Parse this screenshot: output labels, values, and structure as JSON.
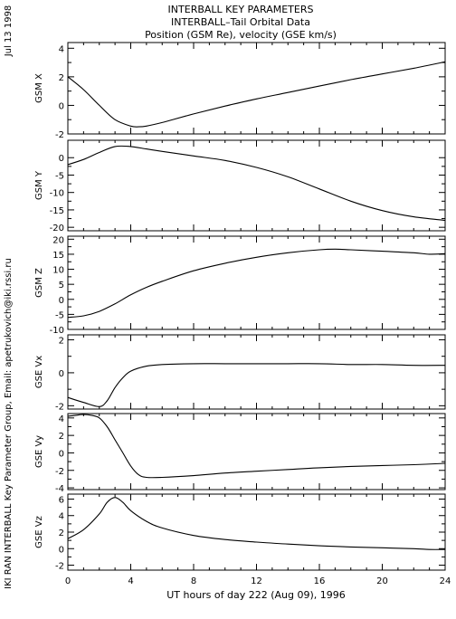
{
  "header": {
    "title_line1": "INTERBALL KEY PARAMETERS",
    "title_line2": "INTERBALL–Tail Orbital Data",
    "title_line3": "Position (GSM Re), velocity (GSE km/s)"
  },
  "side_labels": {
    "date": "Jul 13 1998",
    "credit": "IKI RAN INTERBALL Key Parameter Group, Email: apetrukovich@iki.rssi.ru"
  },
  "colors": {
    "line": "#000000",
    "background": "#ffffff"
  },
  "chart_data": {
    "type": "line",
    "xlabel": "UT hours of day 222 (Aug 09), 1996",
    "xlim": [
      0,
      24
    ],
    "x_ticks": [
      0,
      4,
      8,
      12,
      16,
      20,
      24
    ],
    "x_tick_labels": [
      "0",
      "4",
      "8",
      "12",
      "16",
      "20",
      "24"
    ],
    "panels": [
      {
        "ylabel": "GSM X",
        "ylim": [
          -2,
          4.4
        ],
        "y_ticks": [
          -2,
          0,
          2,
          4
        ],
        "y_tick_labels": [
          "-2",
          "0",
          "2",
          "4"
        ],
        "x": [
          0,
          1,
          2,
          3,
          4,
          4.5,
          5,
          6,
          8,
          10,
          12,
          14,
          16,
          18,
          20,
          22,
          24
        ],
        "y": [
          2.0,
          1.1,
          0.0,
          -1.0,
          -1.45,
          -1.5,
          -1.45,
          -1.2,
          -0.6,
          -0.05,
          0.45,
          0.9,
          1.35,
          1.8,
          2.2,
          2.6,
          3.05
        ]
      },
      {
        "ylabel": "GSM Y",
        "ylim": [
          -21,
          5
        ],
        "y_ticks": [
          -20,
          -15,
          -10,
          -5,
          0
        ],
        "y_tick_labels": [
          "-20",
          "-15",
          "-10",
          "-5",
          "0"
        ],
        "x": [
          0,
          1,
          2,
          3,
          4,
          5,
          6,
          8,
          10,
          12,
          14,
          16,
          18,
          20,
          22,
          24
        ],
        "y": [
          -2.0,
          -0.5,
          1.5,
          3.2,
          3.2,
          2.5,
          1.8,
          0.5,
          -0.8,
          -2.8,
          -5.5,
          -9.0,
          -12.5,
          -15.2,
          -17.0,
          -18.0
        ]
      },
      {
        "ylabel": "GSM Z",
        "ylim": [
          -10,
          21
        ],
        "y_ticks": [
          -10,
          -5,
          0,
          5,
          10,
          15,
          20
        ],
        "y_tick_labels": [
          "-10",
          "-5",
          "0",
          "5",
          "10",
          "15",
          "20"
        ],
        "x": [
          0,
          1,
          2,
          3,
          4,
          5,
          6,
          8,
          10,
          12,
          14,
          16,
          17,
          18,
          20,
          22,
          23,
          24
        ],
        "y": [
          -6.0,
          -5.5,
          -4.0,
          -1.5,
          1.5,
          4.0,
          6.0,
          9.5,
          12.0,
          14.0,
          15.5,
          16.5,
          16.7,
          16.5,
          16.0,
          15.5,
          15.0,
          15.2
        ]
      },
      {
        "ylabel": "GSE Vx",
        "ylim": [
          -2.2,
          2.3
        ],
        "y_ticks": [
          -2,
          0,
          2
        ],
        "y_tick_labels": [
          "-2",
          "0",
          "2"
        ],
        "x": [
          0,
          1,
          2,
          2.5,
          3,
          3.5,
          4,
          5,
          6,
          8,
          10,
          12,
          14,
          16,
          18,
          20,
          22,
          24
        ],
        "y": [
          -1.5,
          -1.8,
          -2.05,
          -1.7,
          -0.9,
          -0.3,
          0.1,
          0.4,
          0.5,
          0.55,
          0.55,
          0.55,
          0.55,
          0.55,
          0.5,
          0.5,
          0.45,
          0.45
        ]
      },
      {
        "ylabel": "GSE Vy",
        "ylim": [
          -4.2,
          4.5
        ],
        "y_ticks": [
          -4,
          -2,
          0,
          2,
          4
        ],
        "y_tick_labels": [
          "-4",
          "-2",
          "0",
          "2",
          "4"
        ],
        "x": [
          0,
          0.5,
          1,
          1.5,
          2,
          2.5,
          3,
          3.5,
          4,
          4.5,
          5,
          6,
          8,
          10,
          12,
          14,
          16,
          18,
          20,
          22,
          24
        ],
        "y": [
          4.2,
          4.3,
          4.4,
          4.3,
          4.0,
          3.0,
          1.5,
          0.0,
          -1.5,
          -2.5,
          -2.8,
          -2.8,
          -2.6,
          -2.3,
          -2.1,
          -1.9,
          -1.7,
          -1.55,
          -1.45,
          -1.35,
          -1.2
        ]
      },
      {
        "ylabel": "GSE Vz",
        "ylim": [
          -2.6,
          6.6
        ],
        "y_ticks": [
          -2,
          0,
          2,
          4,
          6
        ],
        "y_tick_labels": [
          "-2",
          "0",
          "2",
          "4",
          "6"
        ],
        "x": [
          0,
          1,
          2,
          2.5,
          3,
          3.5,
          4,
          5,
          6,
          8,
          10,
          12,
          14,
          16,
          18,
          20,
          22,
          23,
          24
        ],
        "y": [
          1.2,
          2.3,
          4.2,
          5.6,
          6.2,
          5.6,
          4.6,
          3.3,
          2.5,
          1.6,
          1.1,
          0.8,
          0.55,
          0.35,
          0.2,
          0.1,
          0.0,
          -0.1,
          -0.1
        ]
      }
    ]
  }
}
